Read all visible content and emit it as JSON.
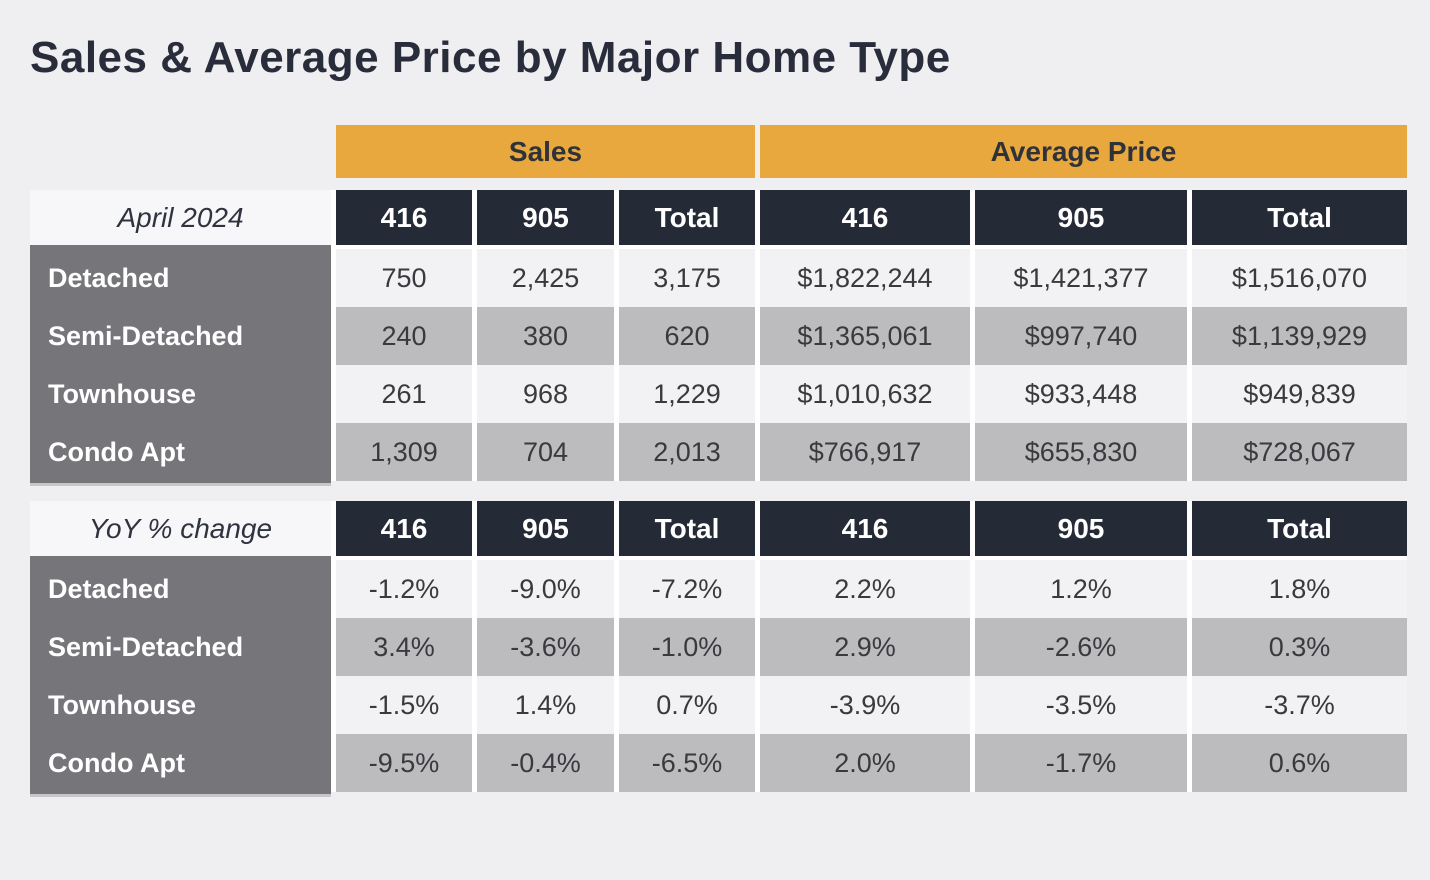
{
  "colors": {
    "pageBg": "#EFEEF0",
    "gold": "#E9A83E",
    "navy": "#252A37",
    "labelGray": "#76757A",
    "rowLight": "#F2F1F3",
    "rowDark": "#BCBBBE",
    "periodBg": "#F7F6F8",
    "textDark": "#3A393D",
    "titleColor": "#292D3B",
    "bandText": "#303239"
  },
  "chart_data": {
    "type": "table",
    "title": "Sales & Average Price by Major Home Type",
    "band_headers": [
      "Sales",
      "Average Price"
    ],
    "column_headers": [
      "416",
      "905",
      "Total",
      "416",
      "905",
      "Total"
    ],
    "sections": [
      {
        "label": "April 2024",
        "rows": [
          {
            "label": "Detached",
            "values": [
              "750",
              "2,425",
              "3,175",
              "$1,822,244",
              "$1,421,377",
              "$1,516,070"
            ]
          },
          {
            "label": "Semi-Detached",
            "values": [
              "240",
              "380",
              "620",
              "$1,365,061",
              "$997,740",
              "$1,139,929"
            ]
          },
          {
            "label": "Townhouse",
            "values": [
              "261",
              "968",
              "1,229",
              "$1,010,632",
              "$933,448",
              "$949,839"
            ]
          },
          {
            "label": "Condo Apt",
            "values": [
              "1,309",
              "704",
              "2,013",
              "$766,917",
              "$655,830",
              "$728,067"
            ]
          }
        ]
      },
      {
        "label": "YoY % change",
        "rows": [
          {
            "label": "Detached",
            "values": [
              "-1.2%",
              "-9.0%",
              "-7.2%",
              "2.2%",
              "1.2%",
              "1.8%"
            ]
          },
          {
            "label": "Semi-Detached",
            "values": [
              "3.4%",
              "-3.6%",
              "-1.0%",
              "2.9%",
              "-2.6%",
              "0.3%"
            ]
          },
          {
            "label": "Townhouse",
            "values": [
              "-1.5%",
              "1.4%",
              "0.7%",
              "-3.9%",
              "-3.5%",
              "-3.7%"
            ]
          },
          {
            "label": "Condo Apt",
            "values": [
              "-9.5%",
              "-0.4%",
              "-6.5%",
              "2.0%",
              "-1.7%",
              "0.6%"
            ]
          }
        ]
      }
    ]
  }
}
